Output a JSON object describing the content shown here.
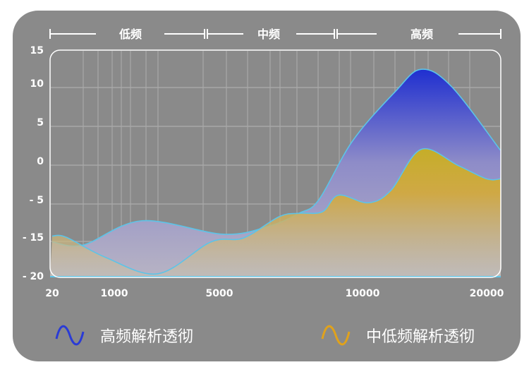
{
  "chart_data": {
    "type": "area",
    "bands": [
      "低频",
      "中频",
      "高频"
    ],
    "x_ticks": [
      20,
      1000,
      5000,
      10000,
      20000
    ],
    "y_ticks": [
      "15",
      "10",
      "5",
      "0",
      "- 5",
      "- 15",
      "- 20"
    ],
    "grid": true,
    "legend_placement": "bottom",
    "series": [
      {
        "name": "高频解析透彻",
        "color": "#2a3bd6",
        "points": [
          [
            20,
            -15.7
          ],
          [
            510,
            -16.1
          ],
          [
            2047,
            -10.8
          ],
          [
            5148,
            -14.4
          ],
          [
            6749,
            -12.2
          ],
          [
            7783,
            -8.8
          ],
          [
            8473,
            -5.2
          ],
          [
            9655,
            2.5
          ],
          [
            12614,
            8.8
          ],
          [
            14716,
            12.0
          ],
          [
            17159,
            9.5
          ],
          [
            21100,
            1.3
          ]
        ]
      },
      {
        "name": "中低频解析透彻",
        "color": "#e0a21c",
        "points": [
          [
            20,
            -14.9
          ],
          [
            243,
            -15.1
          ],
          [
            866,
            -17.7
          ],
          [
            2664,
            -19.8
          ],
          [
            4678,
            -15.7
          ],
          [
            5837,
            -15.2
          ],
          [
            7093,
            -9.7
          ],
          [
            7783,
            -8.8
          ],
          [
            8596,
            -8.4
          ],
          [
            9163,
            -4.5
          ],
          [
            10455,
            -6.0
          ],
          [
            12273,
            -3.9
          ],
          [
            14716,
            1.4
          ],
          [
            17727,
            -0.7
          ],
          [
            20000,
            -2.4
          ],
          [
            21100,
            -2.4
          ]
        ]
      }
    ]
  }
}
